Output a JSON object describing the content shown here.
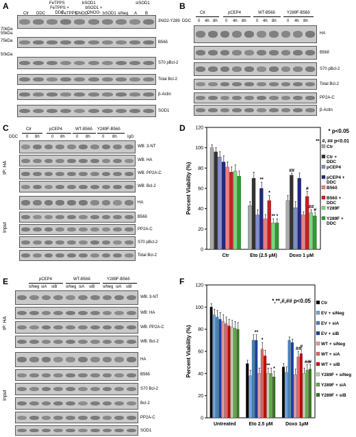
{
  "panels": {
    "A": {
      "letter": "A",
      "lanes": [
        "Ctr",
        "DDC",
        "FeTPPS + DDC",
        "FeTPPS",
        "ONOO-",
        "bSOD1 + ONOO-",
        "bSOD1",
        "siNeg",
        "A",
        "B"
      ],
      "header_groups": [
        "FeTPPS",
        "bSOD1",
        "siSOD1"
      ],
      "markers": [
        "70kDa",
        "55kDa",
        "75kDa",
        "50kDa"
      ],
      "rows": [
        "3NO2-Y289",
        "B56δ",
        "S70 pBcl-2",
        "Total Bcl-2",
        "β-Actin",
        "SOD1"
      ]
    },
    "B": {
      "letter": "B",
      "groups": [
        "Ctr",
        "pCEP4",
        "WT-B56δ",
        "Y289F-B56δ"
      ],
      "ddc_label": "DDC",
      "times": [
        "0",
        "4h",
        "8h",
        "0",
        "4h",
        "8h",
        "0",
        "4h",
        "8h",
        "0",
        "4h",
        "8h"
      ],
      "rows": [
        "HA",
        "B56δ",
        "S70 pBcl-2",
        "Total Bcl-2",
        "PP2A-C",
        "β-Actin"
      ]
    },
    "C": {
      "letter": "C",
      "groups": [
        "Ctr",
        "pCEP4",
        "WT-B56δ",
        "Y289F-B56δ"
      ],
      "ddc_label": "DDC",
      "times": [
        "0",
        "8h",
        "0",
        "8h",
        "0",
        "8h",
        "0",
        "8h"
      ],
      "igg": "IgG",
      "side_ip": "IP: HA",
      "side_input": "Input",
      "ip_rows": [
        "WB: 3-NT",
        "WB: HA",
        "WB: PP2A-C",
        "WB: Bcl-2"
      ],
      "input_rows": [
        "HA",
        "B56δ",
        "PP2A-C",
        "S70 pBcl-2",
        "Total Bcl-2"
      ]
    },
    "D": {
      "letter": "D",
      "sig1": "* p<0.05",
      "sig2": "**, #, ## p<0.01"
    },
    "E": {
      "letter": "E",
      "groups": [
        "pCEP4",
        "WT-B56δ",
        "Y289F-B56δ"
      ],
      "lanes": [
        "siNeg",
        "siA",
        "siB",
        "siNeg",
        "siA",
        "siB",
        "siNeg",
        "siA",
        "siB"
      ],
      "side_ip": "IP: HA",
      "side_input": "Input",
      "ip_rows": [
        "WB: 3-NT",
        "WB: HA",
        "WB: PP2A-C",
        "WB: Bcl-2"
      ],
      "input_rows": [
        "HA",
        "B56δ",
        "S70 Bcl-2",
        "Bcl-2",
        "PP2A-C",
        "SOD1"
      ]
    },
    "F": {
      "letter": "F",
      "sig": "*,**,#,## p<0.05"
    }
  },
  "chart_data": [
    {
      "type": "bar",
      "panel": "D",
      "categories": [
        "Ctr",
        "Eto (2.5 μM)",
        "Doxo 1 μM"
      ],
      "ylabel": "Percent Viability (%)",
      "xlabel": "",
      "ylim": [
        0,
        120
      ],
      "yticks": [
        0,
        20,
        40,
        60,
        80,
        100,
        120
      ],
      "series": [
        {
          "name": "Ctr",
          "values": [
            100,
            43,
            48
          ],
          "errors": [
            3,
            4,
            5
          ],
          "color": "#aaaaaa"
        },
        {
          "name": "Ctr + DDC",
          "values": [
            96,
            70,
            73
          ],
          "errors": [
            4,
            6,
            2
          ],
          "color": "#333333"
        },
        {
          "name": "pCEP4",
          "values": [
            91,
            34,
            41
          ],
          "errors": [
            5,
            5,
            6
          ],
          "color": "#7f90c8"
        },
        {
          "name": "pCEP4 + DDC",
          "values": [
            86,
            60,
            70
          ],
          "errors": [
            6,
            6,
            5
          ],
          "color": "#21297f"
        },
        {
          "name": "B56δ",
          "values": [
            81,
            30,
            34
          ],
          "errors": [
            5,
            4,
            3
          ],
          "color": "#ef7f7f"
        },
        {
          "name": "B56δ + DDC",
          "values": [
            76,
            48,
            52
          ],
          "errors": [
            5,
            5,
            5
          ],
          "color": "#c81e1e"
        },
        {
          "name": "Y289F",
          "values": [
            77,
            26,
            36
          ],
          "errors": [
            6,
            4,
            3
          ],
          "color": "#79d779"
        },
        {
          "name": "Y289F + DDC",
          "values": [
            72,
            26,
            33
          ],
          "errors": [
            5,
            4,
            3
          ],
          "color": "#2f9a2f"
        }
      ],
      "annotations": [
        {
          "category": "Eto (2.5 μM)",
          "series": "pCEP4 + DDC",
          "text": "**"
        },
        {
          "category": "Eto (2.5 μM)",
          "series": "B56δ + DDC",
          "text": "*"
        },
        {
          "category": "Eto (2.5 μM)",
          "series": "Y289F",
          "text": "**"
        },
        {
          "category": "Eto (2.5 μM)",
          "series": "Y289F + DDC",
          "text": "*"
        },
        {
          "category": "Doxo 1 μM",
          "series": "Ctr + DDC",
          "text": "##"
        },
        {
          "category": "Doxo 1 μM",
          "series": "B56δ + DDC",
          "text": "#"
        },
        {
          "category": "Doxo 1 μM",
          "series": "Y289F",
          "text": "##"
        },
        {
          "category": "Doxo 1 μM",
          "series": "Y289F + DDC",
          "text": "#"
        }
      ]
    },
    {
      "type": "bar",
      "panel": "F",
      "categories": [
        "Untreated",
        "Eto 2.5 μM",
        "Doxo 1μM"
      ],
      "ylabel": "Percent Viability (%)",
      "xlabel": "",
      "ylim": [
        0,
        120
      ],
      "yticks": [
        0,
        20,
        40,
        60,
        80,
        100,
        120
      ],
      "series": [
        {
          "name": "Ctr",
          "values": [
            100,
            49,
            46
          ],
          "errors": [
            3,
            3,
            3
          ],
          "color": "#000000"
        },
        {
          "name": "EV + siNeg",
          "values": [
            93,
            38,
            41
          ],
          "errors": [
            5,
            5,
            5
          ],
          "color": "#6fa8dc"
        },
        {
          "name": "EV + siA",
          "values": [
            91,
            70,
            70
          ],
          "errors": [
            6,
            5,
            3
          ],
          "color": "#3d85c6"
        },
        {
          "name": "EV + siB",
          "values": [
            89,
            70,
            68
          ],
          "errors": [
            6,
            5,
            3
          ],
          "color": "#1c3f9f"
        },
        {
          "name": "WT + siNeg",
          "values": [
            87,
            40,
            39
          ],
          "errors": [
            6,
            5,
            5
          ],
          "color": "#ea9999"
        },
        {
          "name": "WT + siA",
          "values": [
            85,
            62,
            55
          ],
          "errors": [
            6,
            6,
            5
          ],
          "color": "#e06666"
        },
        {
          "name": "WT + siB",
          "values": [
            83,
            56,
            58
          ],
          "errors": [
            6,
            5,
            4
          ],
          "color": "#cc0000"
        },
        {
          "name": "Y289F + siNeg",
          "values": [
            82,
            40,
            40
          ],
          "errors": [
            6,
            5,
            5
          ],
          "color": "#b6d7a8"
        },
        {
          "name": "Y289F + siA",
          "values": [
            81,
            40,
            43
          ],
          "errors": [
            6,
            5,
            5
          ],
          "color": "#6aa84f"
        },
        {
          "name": "Y289F + siB",
          "values": [
            80,
            37,
            44
          ],
          "errors": [
            6,
            5,
            4
          ],
          "color": "#38761d"
        }
      ],
      "annotations": [
        {
          "category": "Eto 2.5 μM",
          "series": "EV + siB",
          "text": "**"
        },
        {
          "category": "Eto 2.5 μM",
          "series": "WT + siA",
          "text": "*"
        },
        {
          "category": "Eto 2.5 μM",
          "series": "Y289F + siNeg",
          "text": "**"
        },
        {
          "category": "Eto 2.5 μM",
          "series": "Y289F + siB",
          "text": "*"
        },
        {
          "category": "Doxo 1μM",
          "series": "WT + siA",
          "text": "##"
        },
        {
          "category": "Doxo 1μM",
          "series": "WT + siB",
          "text": "#"
        },
        {
          "category": "Doxo 1μM",
          "series": "Y289F + siA",
          "text": "##"
        },
        {
          "category": "Doxo 1μM",
          "series": "Y289F + siB",
          "text": "#"
        }
      ]
    }
  ]
}
